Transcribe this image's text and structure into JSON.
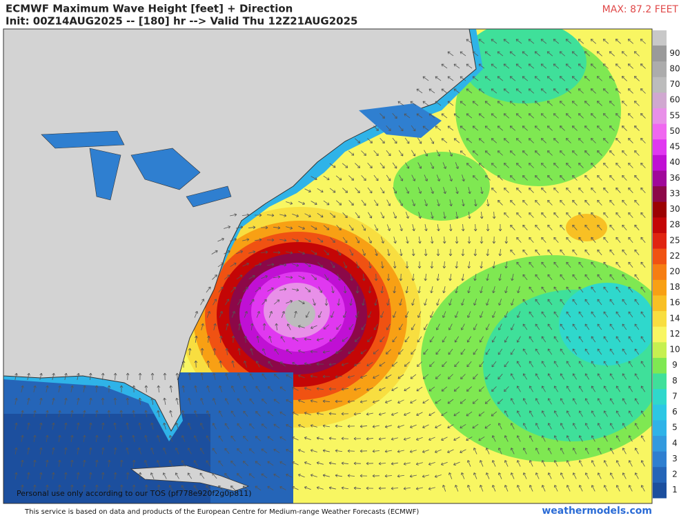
{
  "header": {
    "title": "ECMWF Maximum Wave Height [feet] + Direction",
    "subtitle": "Init: 00Z14AUG2025 -- [180] hr --> Valid Thu 12Z21AUG2025",
    "max_label": "MAX: 87.2 FEET"
  },
  "legend": {
    "levels": [
      1,
      2,
      3,
      4,
      5,
      6,
      7,
      8,
      9,
      10,
      12,
      14,
      16,
      18,
      20,
      22,
      25,
      28,
      30,
      33,
      36,
      40,
      45,
      50,
      55,
      60,
      70,
      80,
      90
    ],
    "colors": [
      "#1c4f9e",
      "#2565b8",
      "#2f7fd0",
      "#339ade",
      "#2fb3e8",
      "#2cc7e4",
      "#2fd8cc",
      "#3fe09a",
      "#7fe852",
      "#c6f050",
      "#f8f662",
      "#f8de40",
      "#f8c024",
      "#f8a014",
      "#f67e12",
      "#f05212",
      "#e02410",
      "#c40606",
      "#9c0202",
      "#8c0848",
      "#a0089a",
      "#c010d4",
      "#e038f0",
      "#f068f0",
      "#e890e8",
      "#d0a8d0",
      "#bcbcbc",
      "#acacac",
      "#9a9a9a"
    ]
  },
  "map": {
    "watermark": "Personal use only according to our TOS (pf778e920f2g0p811)"
  },
  "footer": {
    "disclaimer": "This service is based on data and products of the European Centre for Medium-range Weather Forecasts (ECMWF)",
    "brand": "weathermodels.com"
  }
}
